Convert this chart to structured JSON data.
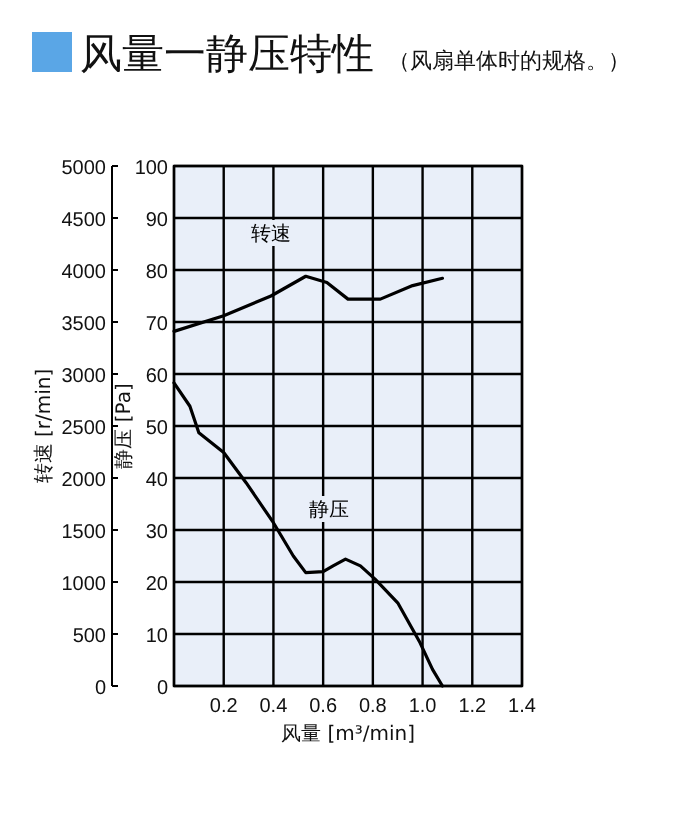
{
  "chart_data": {
    "type": "line",
    "title": "风量一静压特性",
    "subtitle": "（风扇单体时的规格。）",
    "xlabel": "风量 [m³/min]",
    "ylabel": "静压 [Pa]",
    "y2label": "转速 [r/min]",
    "xlim": [
      0,
      1.4
    ],
    "xticks": [
      {
        "value": 0,
        "label": null
      },
      0.2,
      0.4,
      0.6,
      0.8,
      {
        "value": 1,
        "label": "1.0"
      },
      1.2,
      1.4
    ],
    "ylim": [
      0,
      100
    ],
    "yticks": [
      0,
      10,
      20,
      30,
      40,
      50,
      60,
      70,
      80,
      90,
      100
    ],
    "y2lim": [
      0,
      5000
    ],
    "y2ticks": [
      0,
      500,
      1000,
      1500,
      2000,
      2500,
      3000,
      3500,
      4000,
      4500,
      5000
    ],
    "grid": true,
    "series": [
      {
        "name": "转速",
        "color": "#000000",
        "axis": "y2",
        "x": [
          0,
          0.2,
          0.39,
          0.53,
          0.615,
          0.7,
          0.83,
          0.96,
          1.08
        ],
        "values": [
          3410,
          3560,
          3750,
          3940,
          3880,
          3720,
          3720,
          3850,
          3920
        ]
      },
      {
        "name": "静压",
        "color": "#000000",
        "x": [
          0,
          0.064,
          0.1,
          0.2,
          0.29,
          0.4,
          0.48,
          0.53,
          0.6,
          0.64,
          0.69,
          0.75,
          0.81,
          0.9,
          0.99,
          1.04,
          1.08
        ],
        "values": [
          58.3,
          53.8,
          48.7,
          44.9,
          39.1,
          31.4,
          25,
          21.8,
          22,
          23.1,
          24.4,
          23.1,
          20.5,
          16,
          8.3,
          3.2,
          0
        ]
      }
    ]
  }
}
